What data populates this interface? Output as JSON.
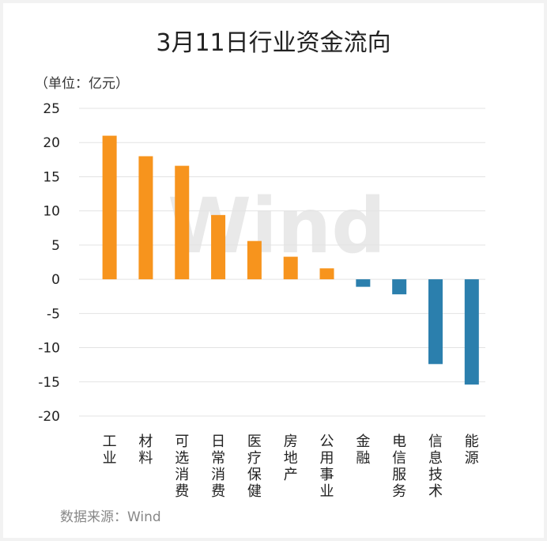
{
  "chart_data": {
    "type": "bar",
    "title": "3月11日行业资金流向",
    "unit_label": "（单位：亿元）",
    "source": "数据来源：Wind",
    "watermark": "Wind",
    "categories": [
      "工业",
      "材料",
      "可选消费",
      "日常消费",
      "医疗保健",
      "房地产",
      "公用事业",
      "金融",
      "电信服务",
      "信息技术",
      "能源"
    ],
    "values": [
      21.0,
      18.0,
      16.6,
      9.4,
      5.6,
      3.3,
      1.6,
      -1.1,
      -2.2,
      -12.4,
      -15.4
    ],
    "yticks": [
      25,
      20,
      15,
      10,
      5,
      0,
      -5,
      -10,
      -15,
      -20
    ],
    "ylim": [
      -20,
      25
    ],
    "grid": true,
    "colors": {
      "positive": "#f7941d",
      "negative": "#2b7fad",
      "grid": "#e3e3e3"
    }
  }
}
